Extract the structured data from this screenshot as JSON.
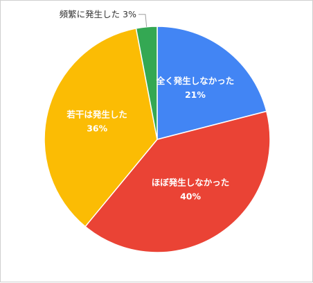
{
  "chart_data": {
    "type": "pie",
    "title": "",
    "slices": [
      {
        "label": "全く発生しなかった",
        "value": 21,
        "value_label": "21%",
        "color": "#4285F4"
      },
      {
        "label": "ほぼ発生しなかった",
        "value": 40,
        "value_label": "40%",
        "color": "#EA4335"
      },
      {
        "label": "若干は発生した",
        "value": 36,
        "value_label": "36%",
        "color": "#FBBC04"
      },
      {
        "label": "頻繁に発生した",
        "value": 3,
        "value_label": "3%",
        "color": "#34A853"
      }
    ],
    "start_angle": "12 o'clock",
    "direction": "clockwise",
    "legend": "none"
  }
}
